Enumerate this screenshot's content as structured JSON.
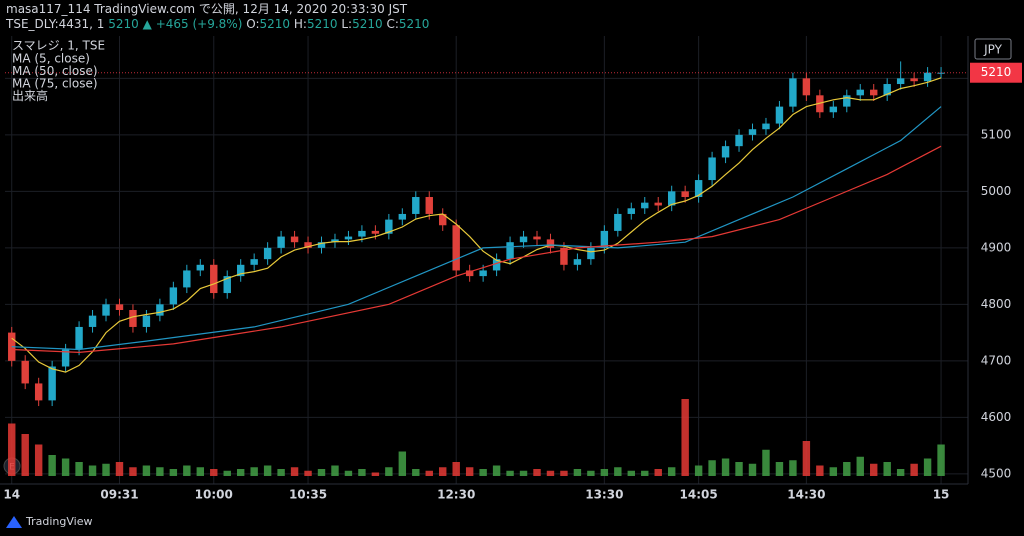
{
  "header": {
    "line1": "masa117_114 TradingView.com で公開, 12月 14, 2020 20:33:30 JST",
    "symbol": "TSE_DLY:4431, 1",
    "last": "5210",
    "change": "▲ +465 (+9.8%)",
    "ohlc": [
      {
        "key": "O:",
        "val": "5210"
      },
      {
        "key": "H:",
        "val": "5210"
      },
      {
        "key": "L:",
        "val": "5210"
      },
      {
        "key": "C:",
        "val": "5210"
      }
    ]
  },
  "footer": {
    "brand": "TradingView"
  },
  "chart_data": {
    "type": "candlestick",
    "title": "スマレジ, 1, TSE",
    "currency": "JPY",
    "x": [
      0,
      1,
      2,
      3,
      4,
      5,
      6,
      7,
      8,
      9,
      10,
      11,
      12,
      13,
      14,
      15,
      16,
      17,
      18,
      19,
      20,
      21,
      22,
      23,
      24,
      25,
      26,
      27,
      28,
      29,
      30,
      31,
      32,
      33,
      34,
      35,
      36,
      37,
      38,
      39,
      40,
      41,
      42,
      43,
      44,
      45,
      46,
      47,
      48,
      49,
      50,
      51,
      52,
      53,
      54,
      55,
      56,
      57,
      58,
      59,
      60,
      61,
      62,
      63,
      64,
      65,
      66,
      67,
      68,
      69
    ],
    "xlim": [
      -0.5,
      71
    ],
    "xticks": [
      {
        "value": 0,
        "label": "14"
      },
      {
        "value": 8,
        "label": "09:31"
      },
      {
        "value": 15,
        "label": "10:00"
      },
      {
        "value": 22,
        "label": "10:35"
      },
      {
        "value": 33,
        "label": "12:30"
      },
      {
        "value": 44,
        "label": "13:30"
      },
      {
        "value": 51,
        "label": "14:05"
      },
      {
        "value": 59,
        "label": "14:30"
      },
      {
        "value": 69,
        "label": "15"
      }
    ],
    "ylim": [
      4482,
      5275
    ],
    "yticks": [
      4500,
      4600,
      4700,
      4800,
      4900,
      5000,
      5100,
      5200
    ],
    "grid": true,
    "up_color": "#22a8c9",
    "down_color": "#e0413b",
    "open": [
      4750,
      4700,
      4660,
      4630,
      4690,
      4720,
      4760,
      4780,
      4800,
      4790,
      4760,
      4780,
      4800,
      4830,
      4860,
      4870,
      4820,
      4850,
      4870,
      4880,
      4900,
      4920,
      4910,
      4900,
      4910,
      4915,
      4920,
      4930,
      4925,
      4950,
      4960,
      4990,
      4960,
      4940,
      4860,
      4850,
      4860,
      4880,
      4910,
      4920,
      4915,
      4900,
      4870,
      4880,
      4900,
      4930,
      4960,
      4970,
      4980,
      4975,
      5000,
      4990,
      5020,
      5060,
      5080,
      5100,
      5110,
      5120,
      5150,
      5200,
      5170,
      5140,
      5150,
      5170,
      5180,
      5170,
      5190,
      5200,
      5195,
      5210
    ],
    "high": [
      4760,
      4710,
      4670,
      4700,
      4730,
      4770,
      4790,
      4810,
      4810,
      4800,
      4790,
      4810,
      4840,
      4870,
      4880,
      4880,
      4860,
      4880,
      4890,
      4910,
      4930,
      4930,
      4920,
      4920,
      4925,
      4930,
      4940,
      4940,
      4960,
      4970,
      5000,
      5000,
      4970,
      4950,
      4870,
      4870,
      4890,
      4920,
      4930,
      4930,
      4925,
      4910,
      4890,
      4910,
      4940,
      4970,
      4980,
      4990,
      4990,
      5010,
      5010,
      5030,
      5070,
      5090,
      5110,
      5120,
      5130,
      5160,
      5210,
      5210,
      5180,
      5160,
      5180,
      5190,
      5190,
      5200,
      5230,
      5210,
      5220,
      5220
    ],
    "low": [
      4690,
      4650,
      4620,
      4620,
      4680,
      4710,
      4750,
      4770,
      4780,
      4750,
      4750,
      4770,
      4790,
      4820,
      4850,
      4810,
      4810,
      4840,
      4860,
      4870,
      4890,
      4900,
      4890,
      4890,
      4900,
      4905,
      4910,
      4915,
      4915,
      4940,
      4950,
      4950,
      4930,
      4850,
      4840,
      4840,
      4850,
      4870,
      4900,
      4905,
      4890,
      4860,
      4860,
      4870,
      4890,
      4920,
      4950,
      4960,
      4965,
      4965,
      4980,
      4980,
      5010,
      5050,
      5070,
      5090,
      5100,
      5110,
      5140,
      5160,
      5130,
      5130,
      5140,
      5160,
      5160,
      5160,
      5180,
      5185,
      5185,
      5200
    ],
    "close": [
      4700,
      4660,
      4630,
      4690,
      4720,
      4760,
      4780,
      4800,
      4790,
      4760,
      4780,
      4800,
      4830,
      4860,
      4870,
      4820,
      4850,
      4870,
      4880,
      4900,
      4920,
      4910,
      4900,
      4910,
      4915,
      4920,
      4930,
      4925,
      4950,
      4960,
      4990,
      4960,
      4940,
      4860,
      4850,
      4860,
      4880,
      4910,
      4920,
      4915,
      4900,
      4870,
      4880,
      4900,
      4930,
      4960,
      4970,
      4980,
      4975,
      5000,
      4990,
      5020,
      5060,
      5080,
      5100,
      5110,
      5120,
      5150,
      5200,
      5170,
      5140,
      5150,
      5170,
      5180,
      5170,
      5190,
      5200,
      5195,
      5210,
      5210
    ],
    "series": [
      {
        "name": "MA (5, close)",
        "color": "#e8c93a",
        "values": [
          4740,
          4722,
          4698,
          4686,
          4680,
          4692,
          4716,
          4750,
          4770,
          4778,
          4782,
          4786,
          4792,
          4806,
          4828,
          4836,
          4846,
          4854,
          4858,
          4864,
          4884,
          4896,
          4902,
          4908,
          4911,
          4911,
          4915,
          4920,
          4928,
          4937,
          4951,
          4957,
          4960,
          4942,
          4920,
          4894,
          4878,
          4872,
          4884,
          4897,
          4905,
          4903,
          4897,
          4893,
          4896,
          4908,
          4928,
          4948,
          4963,
          4977,
          4983,
          4993,
          5009,
          5030,
          5050,
          5074,
          5094,
          5112,
          5136,
          5150,
          5156,
          5162,
          5166,
          5162,
          5162,
          5172,
          5182,
          5187,
          5193,
          5201
        ]
      },
      {
        "name": "MA (50, close)",
        "color": "#2196c4",
        "x": [
          0,
          5,
          10,
          18,
          25,
          30,
          35,
          40,
          45,
          50,
          54,
          58,
          62,
          66,
          69
        ],
        "values": [
          4725,
          4720,
          4735,
          4760,
          4800,
          4850,
          4900,
          4905,
          4900,
          4910,
          4950,
          4990,
          5040,
          5090,
          5150
        ]
      },
      {
        "name": "MA (75, close)",
        "color": "#e53935",
        "x": [
          0,
          5,
          12,
          20,
          28,
          33,
          37,
          42,
          48,
          52,
          57,
          61,
          65,
          69
        ],
        "values": [
          4720,
          4715,
          4730,
          4760,
          4800,
          4850,
          4880,
          4900,
          4910,
          4920,
          4950,
          4990,
          5030,
          5080
        ]
      }
    ],
    "volume": {
      "name": "出来高",
      "vlim": [
        0,
        40000
      ],
      "up_color": "#43a047",
      "down_color": "#e53935",
      "values": [
        15000,
        12000,
        9000,
        6000,
        5000,
        4000,
        3000,
        3500,
        4000,
        2500,
        3000,
        2500,
        2000,
        3000,
        2500,
        2000,
        1500,
        2000,
        2500,
        3000,
        2000,
        2500,
        1500,
        2000,
        3000,
        1500,
        2000,
        1000,
        2500,
        7000,
        2000,
        1500,
        2500,
        4000,
        2500,
        2000,
        3000,
        1500,
        1500,
        2000,
        1500,
        1500,
        2000,
        1500,
        2000,
        2500,
        1500,
        1500,
        2000,
        2500,
        22000,
        3000,
        4500,
        5000,
        4000,
        3500,
        7500,
        4000,
        4500,
        10000,
        3000,
        2500,
        4000,
        5500,
        3500,
        4000,
        2000,
        3500,
        5000,
        9000
      ]
    },
    "last_price": 5210,
    "last_price_color": "#f23645"
  }
}
